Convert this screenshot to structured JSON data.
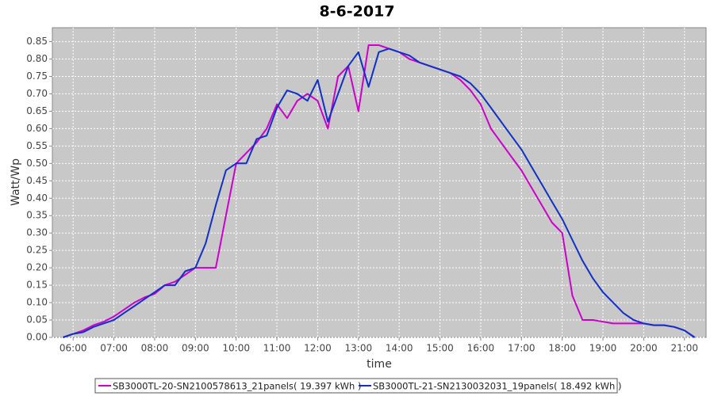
{
  "chart_data": {
    "type": "line",
    "title": "8-6-2017",
    "x_label": "time",
    "y_label": "Watt/Wp",
    "x": [
      5.75,
      6,
      6.25,
      6.5,
      6.75,
      7,
      7.25,
      7.5,
      7.75,
      8,
      8.25,
      8.5,
      8.75,
      9,
      9.25,
      9.5,
      9.75,
      10,
      10.25,
      10.5,
      10.75,
      11,
      11.25,
      11.5,
      11.75,
      12,
      12.25,
      12.5,
      12.75,
      13,
      13.25,
      13.5,
      13.75,
      14,
      14.25,
      14.5,
      14.75,
      15,
      15.25,
      15.5,
      15.75,
      16,
      16.25,
      16.5,
      16.75,
      17,
      17.25,
      17.5,
      17.75,
      18,
      18.25,
      18.5,
      18.75,
      19,
      19.25,
      19.5,
      19.75,
      20,
      20.25,
      20.5,
      20.75,
      21,
      21.25
    ],
    "series": [
      {
        "name": "SB3000TL-20-SN2100578613_21panels( 19.397 kWh )",
        "color": "#cc00cc",
        "values": [
          0,
          0.01,
          0.02,
          0.035,
          0.045,
          0.06,
          0.08,
          0.1,
          0.115,
          0.125,
          0.15,
          0.16,
          0.18,
          0.2,
          0.2,
          0.2,
          0.35,
          0.5,
          0.53,
          0.56,
          0.6,
          0.67,
          0.63,
          0.68,
          0.7,
          0.68,
          0.6,
          0.75,
          0.78,
          0.65,
          0.84,
          0.84,
          0.83,
          0.82,
          0.8,
          0.79,
          0.78,
          0.77,
          0.76,
          0.74,
          0.71,
          0.67,
          0.6,
          0.56,
          0.52,
          0.48,
          0.43,
          0.38,
          0.33,
          0.3,
          0.12,
          0.05,
          0.05,
          0.045,
          0.04,
          0.04,
          0.04,
          0.04,
          0.035,
          0.035,
          0.03,
          0.02,
          0
        ]
      },
      {
        "name": "SB3000TL-21-SN2130032031_19panels( 18.492 kWh )",
        "color": "#1030c8",
        "values": [
          0,
          0.01,
          0.015,
          0.03,
          0.04,
          0.05,
          0.07,
          0.09,
          0.11,
          0.13,
          0.15,
          0.15,
          0.19,
          0.2,
          0.27,
          0.38,
          0.48,
          0.5,
          0.5,
          0.57,
          0.58,
          0.66,
          0.71,
          0.7,
          0.68,
          0.74,
          0.62,
          0.7,
          0.78,
          0.82,
          0.72,
          0.82,
          0.83,
          0.82,
          0.81,
          0.79,
          0.78,
          0.77,
          0.76,
          0.75,
          0.73,
          0.7,
          0.66,
          0.62,
          0.58,
          0.54,
          0.49,
          0.44,
          0.39,
          0.34,
          0.28,
          0.22,
          0.17,
          0.13,
          0.1,
          0.07,
          0.05,
          0.04,
          0.035,
          0.035,
          0.03,
          0.02,
          0
        ]
      }
    ],
    "xlim": [
      5.49,
      21.53
    ],
    "xticks": [
      {
        "value": 6,
        "label": "06:00"
      },
      {
        "value": 7,
        "label": "07:00"
      },
      {
        "value": 8,
        "label": "08:00"
      },
      {
        "value": 9,
        "label": "09:00"
      },
      {
        "value": 10,
        "label": "10:00"
      },
      {
        "value": 11,
        "label": "11:00"
      },
      {
        "value": 12,
        "label": "12:00"
      },
      {
        "value": 13,
        "label": "13:00"
      },
      {
        "value": 14,
        "label": "14:00"
      },
      {
        "value": 15,
        "label": "15:00"
      },
      {
        "value": 16,
        "label": "16:00"
      },
      {
        "value": 17,
        "label": "17:00"
      },
      {
        "value": 18,
        "label": "18:00"
      },
      {
        "value": 19,
        "label": "19:00"
      },
      {
        "value": 20,
        "label": "20:00"
      },
      {
        "value": 21,
        "label": "21:00"
      }
    ],
    "ylim": [
      0,
      0.89
    ],
    "yticks": [
      {
        "value": 0,
        "label": "0.00"
      },
      0.05,
      {
        "value": 0.1,
        "label": "0.10"
      },
      0.15,
      {
        "value": 0.2,
        "label": "0.20"
      },
      0.25,
      {
        "value": 0.3,
        "label": "0.30"
      },
      0.35,
      {
        "value": 0.4,
        "label": "0.40"
      },
      0.45,
      {
        "value": 0.5,
        "label": "0.50"
      },
      0.55,
      {
        "value": 0.6,
        "label": "0.60"
      },
      0.65,
      {
        "value": 0.7,
        "label": "0.70"
      },
      0.75,
      {
        "value": 0.8,
        "label": "0.80"
      },
      0.85
    ],
    "grid": true
  }
}
